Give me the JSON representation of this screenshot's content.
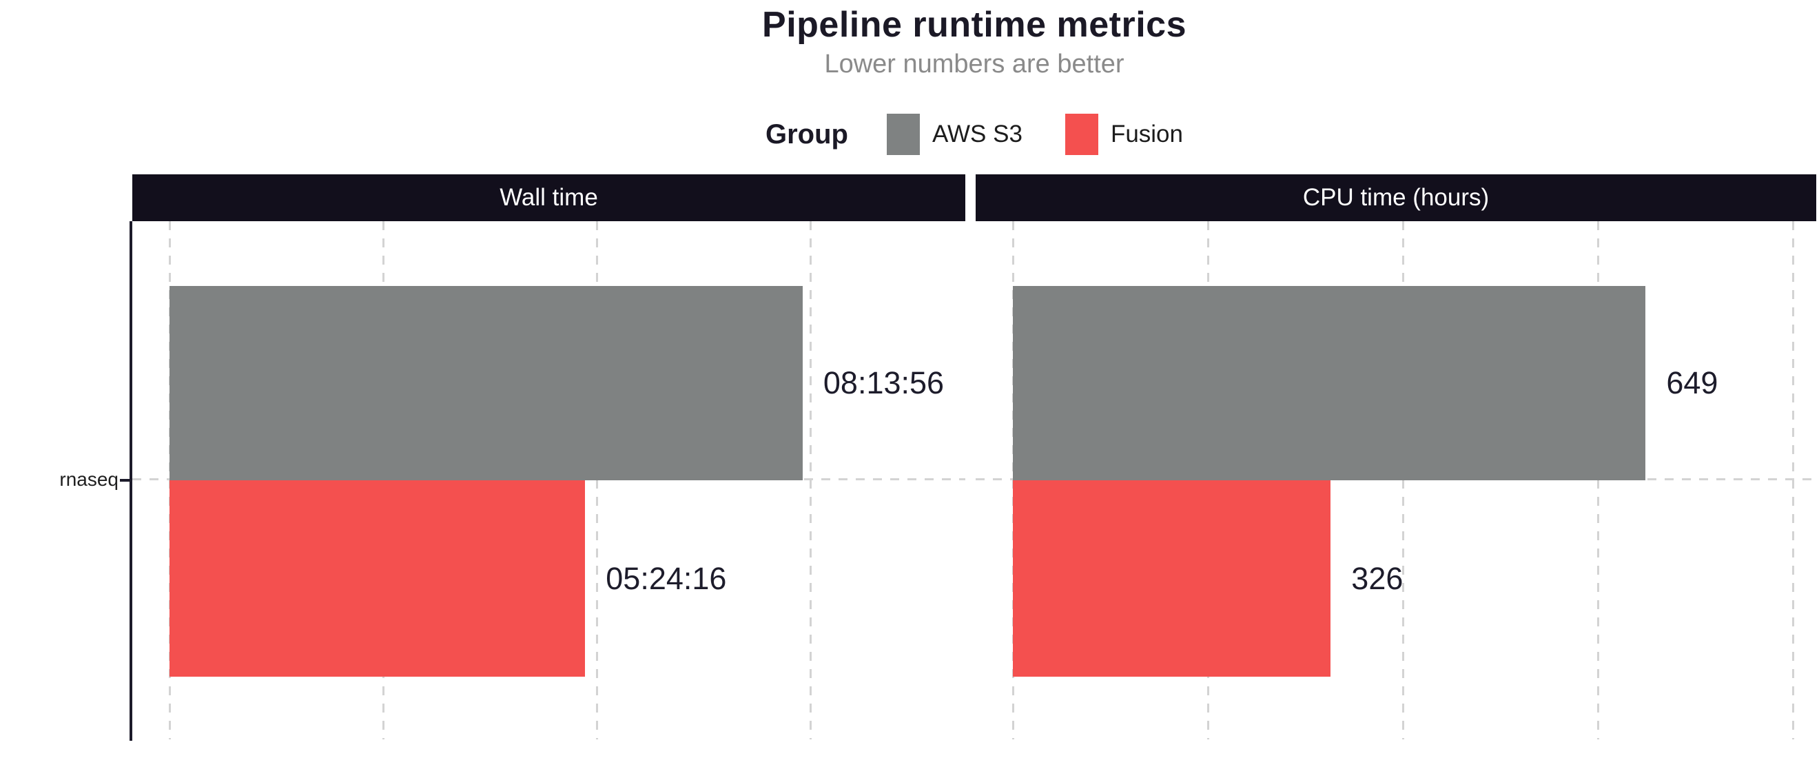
{
  "header": {
    "title": "Pipeline runtime metrics",
    "subtitle": "Lower numbers are better"
  },
  "legend": {
    "title": "Group",
    "items": [
      {
        "name": "AWS S3",
        "color": "#7f8282"
      },
      {
        "name": "Fusion",
        "color": "#f4504f"
      }
    ]
  },
  "y_axis": {
    "category": "rnaseq"
  },
  "chart_data": {
    "type": "bar",
    "orientation": "horizontal",
    "title": "Pipeline runtime metrics",
    "subtitle": "Lower numbers are better",
    "legend_position": "top",
    "grid": "dashed-vertical",
    "categories": [
      "rnaseq"
    ],
    "groups": [
      {
        "name": "AWS S3",
        "color": "#7f8282"
      },
      {
        "name": "Fusion",
        "color": "#f4504f"
      }
    ],
    "facets": [
      {
        "title": "Wall time",
        "value_format": "hh:mm:ss",
        "axis_max": 37250,
        "gridlines": [
          0,
          10000,
          20000,
          30000
        ],
        "tick_labels_visible": false,
        "series": [
          {
            "group": "AWS S3",
            "category": "rnaseq",
            "value": 29636,
            "label": "08:13:56"
          },
          {
            "group": "Fusion",
            "category": "rnaseq",
            "value": 19456,
            "label": "05:24:16"
          }
        ]
      },
      {
        "title": "CPU time (hours)",
        "value_format": "hours",
        "axis_max": 824,
        "gridlines": [
          0,
          200,
          400,
          600,
          800
        ],
        "tick_labels_visible": false,
        "series": [
          {
            "group": "AWS S3",
            "category": "rnaseq",
            "value": 649,
            "label": "649"
          },
          {
            "group": "Fusion",
            "category": "rnaseq",
            "value": 326,
            "label": "326"
          }
        ]
      }
    ],
    "style": {
      "strip_background": "#120f1c",
      "strip_text_color": "#ffffff",
      "axis_color": "#1c1b2a",
      "gridline_color": "#d3d3d3",
      "label_color": "#1d1c2b",
      "title_color": "#1b1926",
      "subtitle_color": "#8a8a8a"
    }
  }
}
